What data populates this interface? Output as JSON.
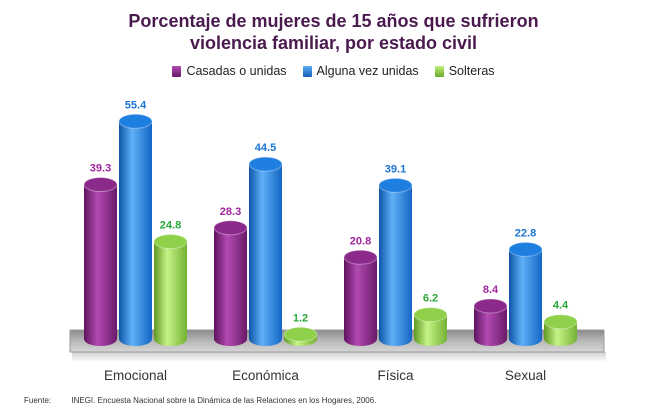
{
  "chart_data": {
    "type": "bar",
    "title": "Porcentaje de mujeres de 15 años que sufrieron violencia familiar, por estado civil",
    "title_lines": [
      "Porcentaje de mujeres de 15 años que sufrieron",
      "violencia familiar, por estado civil"
    ],
    "categories": [
      "Emocional",
      "Económica",
      "Física",
      "Sexual"
    ],
    "series": [
      {
        "name": "Casadas o unidas",
        "values": [
          39.3,
          28.3,
          20.8,
          8.4
        ],
        "color": "#8c2a8c",
        "label_color": "#a0269e"
      },
      {
        "name": "Alguna vez unidas",
        "values": [
          55.4,
          44.5,
          39.1,
          22.8
        ],
        "color": "#1f7fe0",
        "label_color": "#1a74d0"
      },
      {
        "name": "Solteras",
        "values": [
          24.8,
          1.2,
          6.2,
          4.4
        ],
        "color": "#8fd14a",
        "label_color": "#2aa83a"
      }
    ],
    "ylim": [
      0,
      60
    ],
    "grid": false,
    "legend_position": "top"
  },
  "source": {
    "label": "Fuente:",
    "text": "INEGI. Encuesta Nacional sobre la Dinámica de las Relaciones en los Hogares, 2006."
  }
}
